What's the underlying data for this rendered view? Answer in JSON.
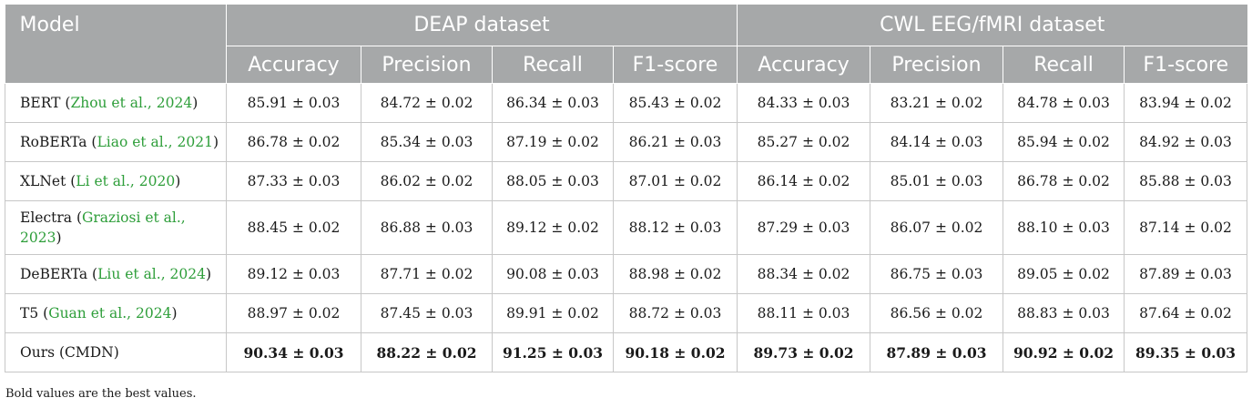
{
  "header": {
    "model_label": "Model",
    "groups": [
      "DEAP dataset",
      "CWL EEG/fMRI dataset"
    ],
    "metrics": [
      "Accuracy",
      "Precision",
      "Recall",
      "F1-score",
      "Accuracy",
      "Precision",
      "Recall",
      "F1-score"
    ]
  },
  "rows": [
    {
      "model": "BERT",
      "citation": "Zhou et al., 2024",
      "values": [
        "85.91 ± 0.03",
        "84.72 ± 0.02",
        "86.34 ± 0.03",
        "85.43 ± 0.02",
        "84.33 ± 0.03",
        "83.21 ± 0.02",
        "84.78 ± 0.03",
        "83.94 ± 0.02"
      ]
    },
    {
      "model": "RoBERTa",
      "citation": "Liao et al., 2021",
      "values": [
        "86.78 ± 0.02",
        "85.34 ± 0.03",
        "87.19 ± 0.02",
        "86.21 ± 0.03",
        "85.27 ± 0.02",
        "84.14 ± 0.03",
        "85.94 ± 0.02",
        "84.92 ± 0.03"
      ]
    },
    {
      "model": "XLNet",
      "citation": "Li et al., 2020",
      "values": [
        "87.33 ± 0.03",
        "86.02 ± 0.02",
        "88.05 ± 0.03",
        "87.01 ± 0.02",
        "86.14 ± 0.02",
        "85.01 ± 0.03",
        "86.78 ± 0.02",
        "85.88 ± 0.03"
      ]
    },
    {
      "model": "Electra",
      "citation": "Graziosi et al., 2023",
      "values": [
        "88.45 ± 0.02",
        "86.88 ± 0.03",
        "89.12 ± 0.02",
        "88.12 ± 0.03",
        "87.29 ± 0.03",
        "86.07 ± 0.02",
        "88.10 ± 0.03",
        "87.14 ± 0.02"
      ]
    },
    {
      "model": "DeBERTa",
      "citation": "Liu et al., 2024",
      "values": [
        "89.12 ± 0.03",
        "87.71 ± 0.02",
        "90.08 ± 0.03",
        "88.98 ± 0.02",
        "88.34 ± 0.02",
        "86.75 ± 0.03",
        "89.05 ± 0.02",
        "87.89 ± 0.03"
      ]
    },
    {
      "model": "T5",
      "citation": "Guan et al., 2024",
      "values": [
        "88.97 ± 0.02",
        "87.45 ± 0.03",
        "89.91 ± 0.02",
        "88.72 ± 0.03",
        "88.11 ± 0.03",
        "86.56 ± 0.02",
        "88.83 ± 0.03",
        "87.64 ± 0.02"
      ]
    },
    {
      "model": "Ours (CMDN)",
      "citation": "",
      "values": [
        "90.34 ± 0.03",
        "88.22 ± 0.02",
        "91.25 ± 0.03",
        "90.18 ± 0.02",
        "89.73 ± 0.02",
        "87.89 ± 0.03",
        "90.92 ± 0.02",
        "89.35 ± 0.03"
      ]
    }
  ],
  "footnote": "Bold values are the best values.",
  "colors": {
    "header_bg": "#a6a8a9",
    "citation": "#2e9e3a",
    "border": "#c7c7c7"
  }
}
